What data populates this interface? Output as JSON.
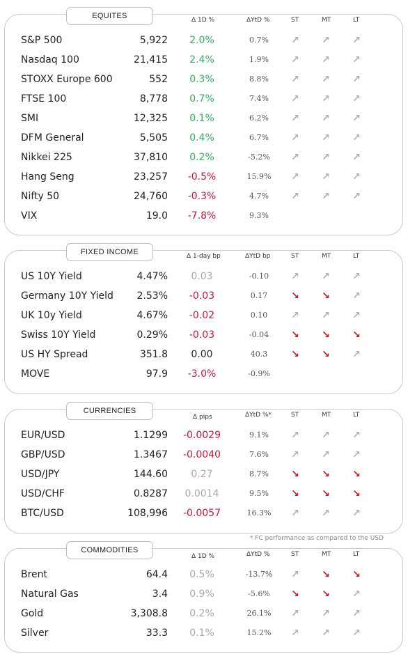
{
  "colors": {
    "positive": "#2db35d",
    "negative": "#c6163c",
    "neutral": "#a8a8a8",
    "arrow_up": "#b6aea5",
    "arrow_down": "#c21a22"
  },
  "equities": {
    "title": "EQUITES",
    "headers": {
      "d1": "Δ 1D %",
      "ytd": "ΔYtD %",
      "st": "ST",
      "mt": "MT",
      "lt": "LT"
    },
    "rows": [
      {
        "name": "S&P 500",
        "value": "5,922",
        "d1": "2.0%",
        "d1_sign": "pos",
        "ytd": "0.7%",
        "st": "up",
        "mt": "up",
        "lt": "up"
      },
      {
        "name": "Nasdaq 100",
        "value": "21,415",
        "d1": "2.4%",
        "d1_sign": "pos",
        "ytd": "1.9%",
        "st": "up",
        "mt": "up",
        "lt": "up"
      },
      {
        "name": "STOXX Europe 600",
        "value": "552",
        "d1": "0.3%",
        "d1_sign": "pos",
        "ytd": "8.8%",
        "st": "up",
        "mt": "up",
        "lt": "up"
      },
      {
        "name": "FTSE 100",
        "value": "8,778",
        "d1": "0.7%",
        "d1_sign": "pos",
        "ytd": "7.4%",
        "st": "up",
        "mt": "up",
        "lt": "up"
      },
      {
        "name": "SMI",
        "value": "12,325",
        "d1": "0.1%",
        "d1_sign": "pos",
        "ytd": "6.2%",
        "st": "up",
        "mt": "up",
        "lt": "up"
      },
      {
        "name": "DFM General",
        "value": "5,505",
        "d1": "0.4%",
        "d1_sign": "pos",
        "ytd": "6.7%",
        "st": "up",
        "mt": "up",
        "lt": "up"
      },
      {
        "name": "Nikkei 225",
        "value": "37,810",
        "d1": "0.2%",
        "d1_sign": "pos",
        "ytd": "-5.2%",
        "st": "up",
        "mt": "up",
        "lt": "up"
      },
      {
        "name": "Hang Seng",
        "value": "23,257",
        "d1": "-0.5%",
        "d1_sign": "neg",
        "ytd": "15.9%",
        "st": "up",
        "mt": "up",
        "lt": "up"
      },
      {
        "name": "Nifty  50",
        "value": "24,760",
        "d1": "-0.3%",
        "d1_sign": "neg",
        "ytd": "4.7%",
        "st": "up",
        "mt": "up",
        "lt": "up"
      },
      {
        "name": "VIX",
        "value": "19.0",
        "d1": "-7.8%",
        "d1_sign": "neg",
        "ytd": "9.3%",
        "st": "",
        "mt": "",
        "lt": ""
      }
    ]
  },
  "fixed_income": {
    "title": "FIXED INCOME",
    "headers": {
      "d1": "Δ 1-day bp",
      "ytd": "ΔYtD bp",
      "st": "ST",
      "mt": "MT",
      "lt": "LT"
    },
    "rows": [
      {
        "name": "US 10Y Yield",
        "value": "4.47%",
        "d1": "0.03",
        "d1_sign": "neu",
        "ytd": "-0.10",
        "st": "up",
        "mt": "up",
        "lt": "up"
      },
      {
        "name": "Germany 10Y Yield",
        "value": "2.53%",
        "d1": "-0.03",
        "d1_sign": "neg",
        "ytd": "0.17",
        "st": "down",
        "mt": "down",
        "lt": "up"
      },
      {
        "name": "UK 10y Yield",
        "value": "4.67%",
        "d1": "-0.02",
        "d1_sign": "neg",
        "ytd": "0.10",
        "st": "up",
        "mt": "up",
        "lt": "up"
      },
      {
        "name": "Swiss 10Y Yield",
        "value": "0.29%",
        "d1": "-0.03",
        "d1_sign": "neg",
        "ytd": "-0.04",
        "st": "down",
        "mt": "down",
        "lt": "down"
      },
      {
        "name": "US HY Spread",
        "value": "351.8",
        "d1": "0.00",
        "d1_sign": "none",
        "ytd": "40.3",
        "st": "down",
        "mt": "down",
        "lt": "up"
      },
      {
        "name": "MOVE",
        "value": "97.9",
        "d1": "-3.0%",
        "d1_sign": "neg",
        "ytd": "-0.9%",
        "st": "",
        "mt": "",
        "lt": ""
      }
    ]
  },
  "currencies": {
    "title": "CURRENCIES",
    "headers": {
      "d1": "Δ pips",
      "ytd": "ΔYtD %*",
      "st": "ST",
      "mt": "MT",
      "lt": "LT"
    },
    "rows": [
      {
        "name": "EUR/USD",
        "value": "1.1299",
        "d1": "-0.0029",
        "d1_sign": "neg",
        "ytd": "9.1%",
        "st": "up",
        "mt": "up",
        "lt": "up"
      },
      {
        "name": "GBP/USD",
        "value": "1.3467",
        "d1": "-0.0040",
        "d1_sign": "neg",
        "ytd": "7.6%",
        "st": "up",
        "mt": "up",
        "lt": "up"
      },
      {
        "name": "USD/JPY",
        "value": "144.60",
        "d1": "0.27",
        "d1_sign": "neu",
        "ytd": "8.7%",
        "st": "down",
        "mt": "down",
        "lt": "down"
      },
      {
        "name": "USD/CHF",
        "value": "0.8287",
        "d1": "0.0014",
        "d1_sign": "neu",
        "ytd": "9.5%",
        "st": "down",
        "mt": "down",
        "lt": "down"
      },
      {
        "name": "BTC/USD",
        "value": "108,996",
        "d1": "-0.0057",
        "d1_sign": "neg",
        "ytd": "16.3%",
        "st": "up",
        "mt": "up",
        "lt": "up"
      }
    ],
    "footnote": "* FC performance as compared to the USD"
  },
  "commodities": {
    "title": "COMMODITIES",
    "headers": {
      "d1": "Δ 1D %",
      "ytd": "ΔYtD %",
      "st": "ST",
      "mt": "MT",
      "lt": "LT"
    },
    "rows": [
      {
        "name": "Brent",
        "value": "64.4",
        "d1": "0.5%",
        "d1_sign": "neu",
        "ytd": "-13.7%",
        "st": "up",
        "mt": "down",
        "lt": "down"
      },
      {
        "name": "Natural Gas",
        "value": "3.4",
        "d1": "0.9%",
        "d1_sign": "neu",
        "ytd": "-5.6%",
        "st": "down",
        "mt": "down",
        "lt": "up"
      },
      {
        "name": "Gold",
        "value": "3,308.8",
        "d1": "0.2%",
        "d1_sign": "neu",
        "ytd": "26.1%",
        "st": "up",
        "mt": "up",
        "lt": "up"
      },
      {
        "name": "Silver",
        "value": "33.3",
        "d1": "0.1%",
        "d1_sign": "neu",
        "ytd": "15.2%",
        "st": "up",
        "mt": "up",
        "lt": "up"
      }
    ]
  }
}
